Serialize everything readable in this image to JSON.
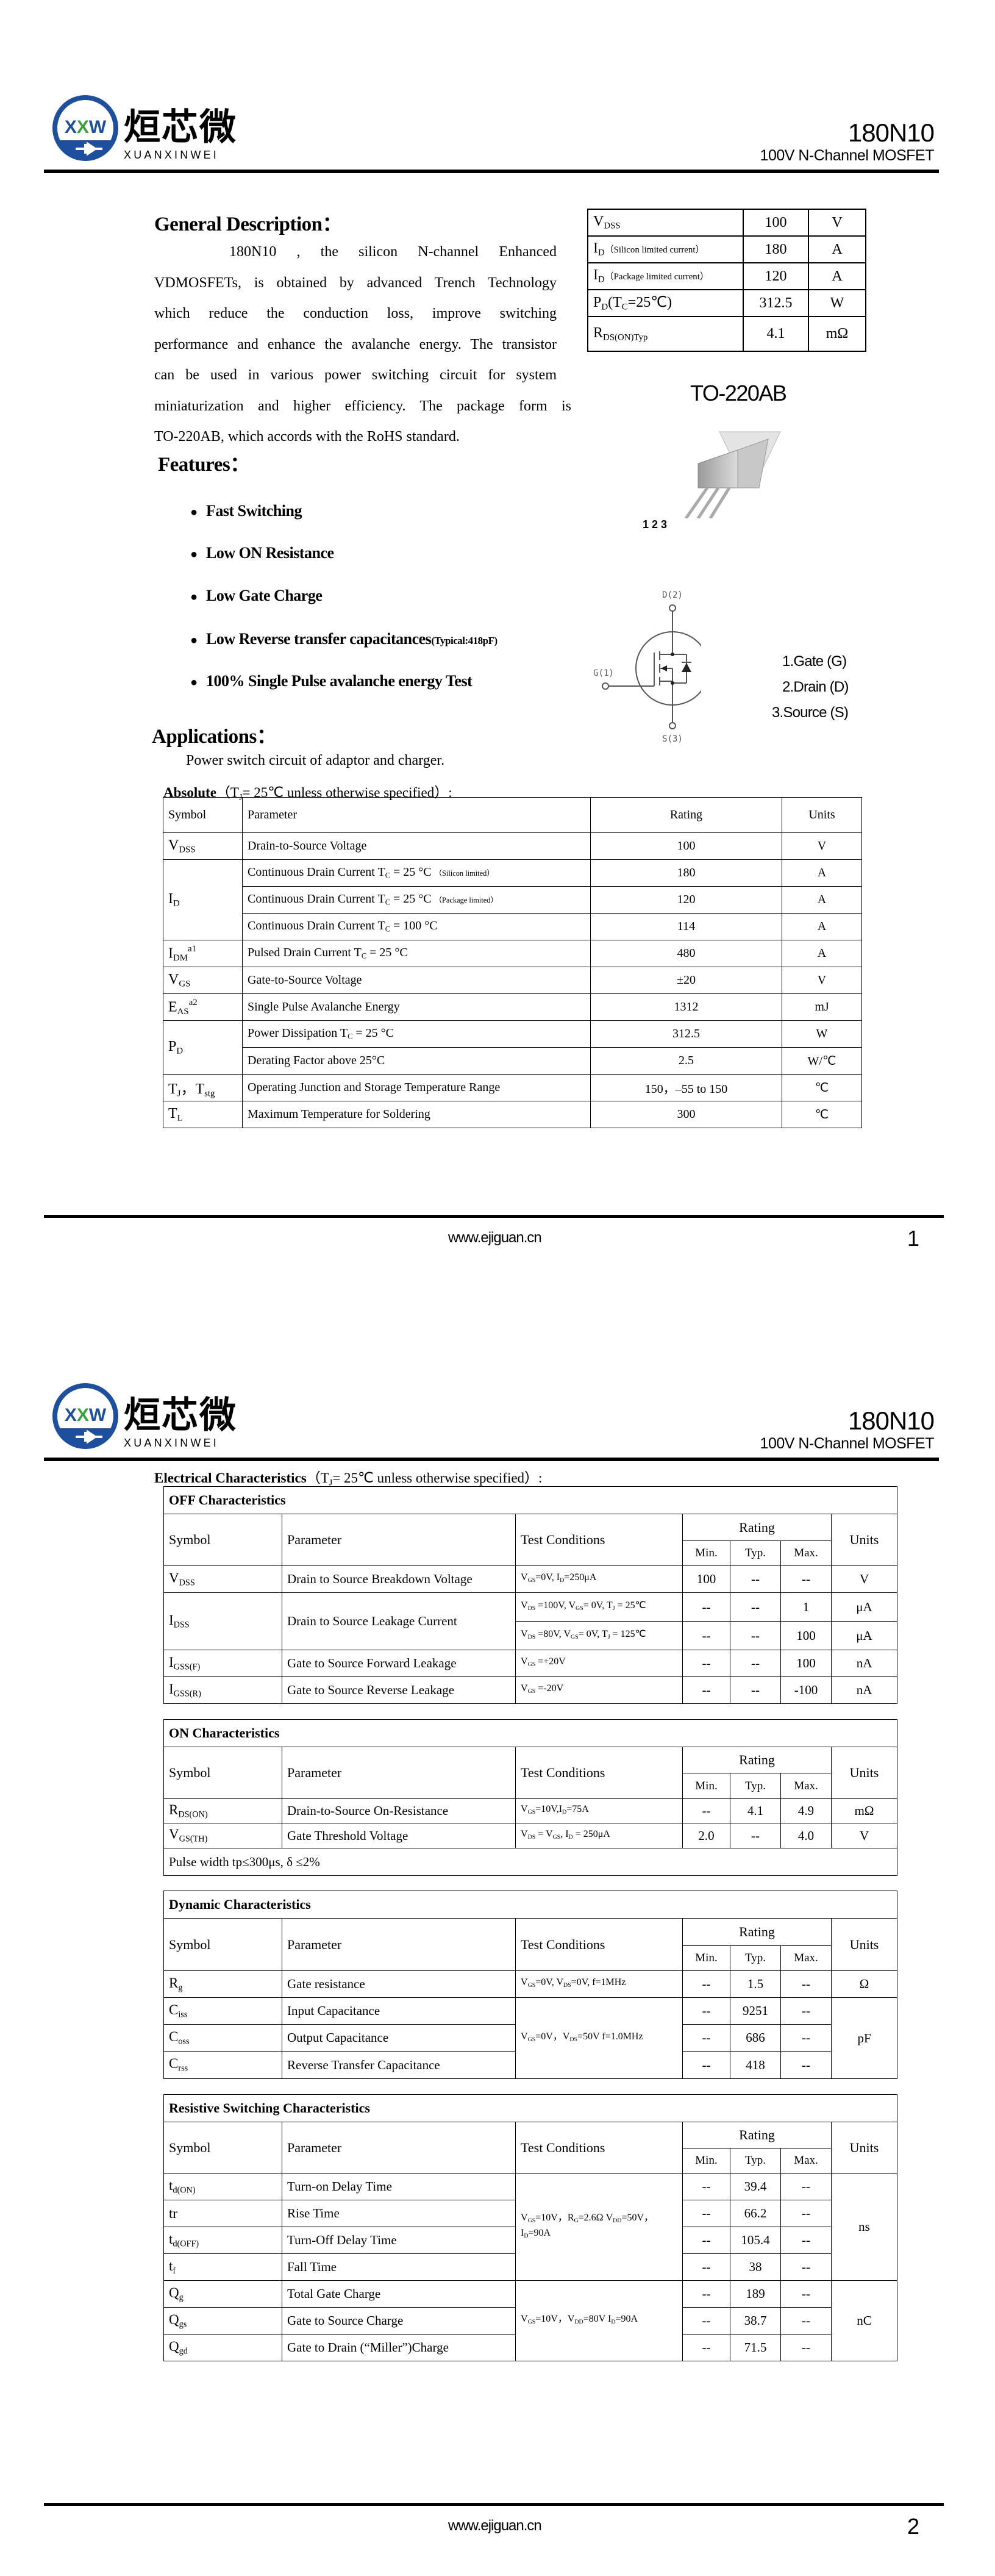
{
  "header": {
    "logo": {
      "mark": "XXW",
      "cn": "烜芯微",
      "en": "XUANXINWEI"
    },
    "part_number": "180N10",
    "subtitle": "100V N-Channel MOSFET",
    "colors": {
      "logo_blue": "#1d4f9c",
      "logo_green": "#3aa23a"
    }
  },
  "footer": {
    "url": "www.ejiguan.cn",
    "pages": [
      "1",
      "2"
    ]
  },
  "page1": {
    "general_heading": "General Description：",
    "description_lines": [
      "180N10 , the silicon N-channel Enhanced",
      "VDMOSFETs, is obtained by advanced Trench Technology",
      "which reduce the conduction loss, improve switching",
      "performance and enhance the avalanche energy. The transistor",
      "can be used in various power switching circuit for system",
      "miniaturization and higher efficiency. The package form is",
      "TO-220AB, which accords with the RoHS standard."
    ],
    "summary_table": [
      [
        "V{DSS}",
        "100",
        "V"
      ],
      [
        "I{D}[（Silicon limited current）]",
        "180",
        "A"
      ],
      [
        "I{D}[（Package limited current）]",
        "120",
        "A"
      ],
      [
        "P{D}(T{C}=25℃)",
        "312.5",
        "W"
      ],
      [
        "R{DS(ON)Typ}",
        "4.1",
        "mΩ"
      ]
    ],
    "package_label": "TO-220AB",
    "package_pins": "1 2 3",
    "features_heading": "Features：",
    "features": [
      {
        "text": "Fast Switching"
      },
      {
        "text": "Low ON Resistance"
      },
      {
        "text": "Low Gate Charge"
      },
      {
        "text": "Low Reverse transfer capacitances",
        "note": "(Typical:418pF)"
      },
      {
        "text": "100% Single Pulse avalanche energy Test"
      }
    ],
    "schematic": {
      "drain": "D(2)",
      "gate": "G(1)",
      "source": "S(3)"
    },
    "pin_legend": [
      "1.Gate (G)",
      "2.Drain (D)",
      "3.Source (S)"
    ],
    "applications_heading": "Applications：",
    "applications_text": "Power switch circuit of adaptor and charger.",
    "absolute_heading": "Absolute",
    "absolute_cond": "（T{J}= 25℃  unless otherwise specified）:",
    "absolute_table": {
      "columns": [
        "Symbol",
        "Parameter",
        "Rating",
        "Units"
      ],
      "rows": [
        [
          "V{DSS}",
          "Drain-to-Source Voltage",
          "100",
          "V"
        ],
        [
          "I{D}",
          "Continuous Drain Current T{C} = 25 °C [（Silicon limited）]",
          "180",
          "A"
        ],
        [
          "Continuous Drain Current T{C} = 25 °C [（Package limited）]",
          "120",
          "A"
        ],
        [
          "Continuous Drain Current T{C} = 100 °C",
          "114",
          "A"
        ],
        [
          "I{DM}^{a1}",
          "Pulsed Drain Current T{C} = 25 °C",
          "480",
          "A"
        ],
        [
          "V{GS}",
          "Gate-to-Source Voltage",
          "±20",
          "V"
        ],
        [
          "E{AS}^{a2}",
          "Single Pulse Avalanche Energy",
          "1312",
          "mJ"
        ],
        [
          "P{D}",
          "Power Dissipation T{C} = 25 °C",
          "312.5",
          "W"
        ],
        [
          "Derating Factor above 25°C",
          "2.5",
          "W/℃"
        ],
        [
          "T{J}，T{stg}",
          "Operating Junction and Storage Temperature Range",
          "150，–55 to 150",
          "℃"
        ],
        [
          "T{L}",
          "Maximum Temperature for Soldering",
          "300",
          "℃"
        ]
      ]
    }
  },
  "page2": {
    "electrical_heading": "Electrical Characteristics",
    "electrical_cond": "（T{J}= 25℃  unless otherwise specified）:",
    "columns": {
      "symbol": "Symbol",
      "parameter": "Parameter",
      "conditions": "Test Conditions",
      "rating": "Rating",
      "min": "Min.",
      "typ": "Typ.",
      "max": "Max.",
      "units": "Units"
    },
    "sections": [
      {
        "title": "OFF Characteristics",
        "rows": [
          [
            "V{DSS}",
            "Drain to Source Breakdown Voltage",
            "V{GS}=0V, I{D}=250μA",
            "100",
            "--",
            "--",
            "V"
          ],
          [
            "I{DSS}",
            "Drain to Source Leakage Current",
            "V{DS} =100V, V{GS}= 0V, T{J} = 25℃",
            "--",
            "--",
            "1",
            "μA"
          ],
          [
            "V{DS} =80V, V{GS}= 0V, T{J} = 125℃",
            "--",
            "--",
            "100",
            "μA"
          ],
          [
            "I{GSS(F)}",
            "Gate to Source Forward Leakage",
            "V{GS} =+20V",
            "--",
            "--",
            "100",
            "nA"
          ],
          [
            "I{GSS(R)}",
            "Gate to Source Reverse Leakage",
            "V{GS} =-20V",
            "--",
            "--",
            "-100",
            "nA"
          ]
        ]
      },
      {
        "title": "ON Characteristics",
        "rows": [
          [
            "R{DS(ON)}",
            "Drain-to-Source On-Resistance",
            "V{GS}=10V,I{D}=75A",
            "--",
            "4.1",
            "4.9",
            "mΩ"
          ],
          [
            "V{GS(TH)}",
            "Gate Threshold Voltage",
            "V{DS} = V{GS}, I{D} = 250μA",
            "2.0",
            "--",
            "4.0",
            "V"
          ]
        ],
        "note": "Pulse width tp≤300μs, δ ≤2%"
      },
      {
        "title": "Dynamic Characteristics",
        "rows": [
          [
            "R{g}",
            "Gate resistance",
            "V{GS}=0V, V{DS}=0V, f=1MHz",
            "--",
            "1.5",
            "--",
            "Ω"
          ],
          [
            "C{iss}",
            "Input Capacitance",
            "V{GS}=0V，V{DS}=50V f=1.0MHz",
            "--",
            "9251",
            "--",
            "pF"
          ],
          [
            "C{oss}",
            "Output Capacitance",
            "--",
            "686",
            "--"
          ],
          [
            "C{rss}",
            "Reverse Transfer Capacitance",
            "--",
            "418",
            "--"
          ]
        ]
      },
      {
        "title": "Resistive Switching Characteristics",
        "rows": [
          [
            "t{d(ON)}",
            "Turn-on Delay Time",
            "V{GS}=10V，R{G}=2.6Ω V{DD}=50V，I{D}=90A",
            "--",
            "39.4",
            "--",
            "ns"
          ],
          [
            "tr",
            "Rise Time",
            "--",
            "66.2",
            "--"
          ],
          [
            "t{d(OFF)}",
            "Turn-Off Delay Time",
            "--",
            "105.4",
            "--"
          ],
          [
            "t{f}",
            "Fall Time",
            "--",
            "38",
            "--"
          ],
          [
            "Q{g}",
            "Total Gate Charge",
            "V{GS}=10V，V{DD}=80V I{D}=90A",
            "--",
            "189",
            "--",
            "nC"
          ],
          [
            "Q{gs}",
            "Gate to Source Charge",
            "--",
            "38.7",
            "--"
          ],
          [
            "Q{gd}",
            "Gate to Drain (“Miller”)Charge",
            "--",
            "71.5",
            "--"
          ]
        ]
      }
    ]
  }
}
